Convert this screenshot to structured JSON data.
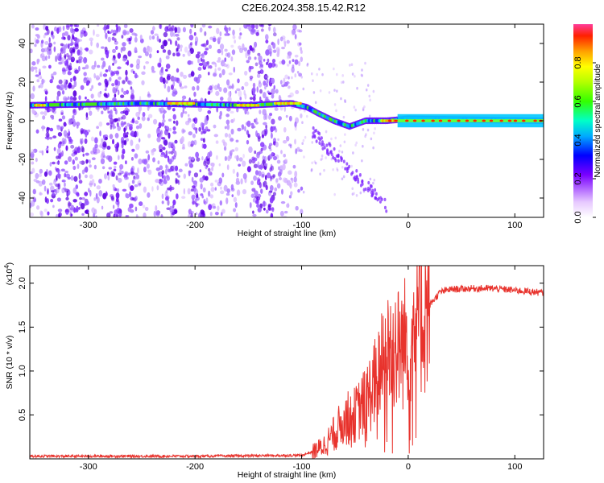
{
  "title": "C2E6.2024.358.15.42.R12",
  "chart_data": [
    {
      "type": "heatmap",
      "xlabel": "Height of straight line (km)",
      "ylabel": "Frequency (Hz)",
      "xlim": [
        -355,
        127
      ],
      "ylim": [
        -50,
        50
      ],
      "xticks": [
        -300,
        -200,
        -100,
        0,
        100
      ],
      "yticks": [
        -40,
        -20,
        0,
        20,
        40
      ],
      "colorbar": {
        "label": "Normalized spectral amplitude",
        "range": [
          0.0,
          1.0
        ],
        "ticks": [
          0.0,
          0.2,
          0.4,
          0.6,
          0.8
        ],
        "tick_labels": [
          "0.0",
          "0.2",
          "0.4",
          "0.6",
          "0.8"
        ]
      },
      "features": {
        "main_band": [
          {
            "x": -355,
            "y": 8
          },
          {
            "x": -250,
            "y": 9
          },
          {
            "x": -150,
            "y": 8
          },
          {
            "x": -110,
            "y": 9
          },
          {
            "x": -95,
            "y": 7
          },
          {
            "x": -85,
            "y": 4
          },
          {
            "x": -70,
            "y": 0
          },
          {
            "x": -55,
            "y": -3
          },
          {
            "x": -40,
            "y": 0
          },
          {
            "x": -20,
            "y": 0
          },
          {
            "x": 0,
            "y": 1
          },
          {
            "x": 127,
            "y": 0
          }
        ],
        "bright_segments": [
          {
            "x0": -350,
            "x1": -340,
            "y": 8
          },
          {
            "x0": -225,
            "x1": -200,
            "y": 9
          },
          {
            "x0": -160,
            "x1": -140,
            "y": 8
          },
          {
            "x0": -125,
            "x1": -100,
            "y": 9
          },
          {
            "x0": -25,
            "x1": 127,
            "y": 0
          }
        ]
      }
    },
    {
      "type": "line",
      "xlabel": "Height of straight line (km)",
      "ylabel": "SNR (10 * v/v)",
      "y_multiplier": "(x10^4)",
      "y_multiplier_base": "(x10",
      "y_multiplier_exp": "4",
      "y_multiplier_close": ")",
      "xlim": [
        -355,
        127
      ],
      "ylim": [
        0,
        2.2
      ],
      "xticks": [
        -300,
        -200,
        -100,
        0,
        100
      ],
      "yticks": [
        0.5,
        1.0,
        1.5,
        2.0
      ],
      "ytick_labels": [
        "0.5",
        "1.0",
        "1.5",
        "2.0"
      ],
      "series": [
        {
          "color": "#e8332d",
          "x": [
            -355,
            -300,
            -200,
            -100,
            -90,
            -80,
            -70,
            -60,
            -50,
            -40,
            -30,
            -25,
            -20,
            -15,
            -10,
            -5,
            0,
            10,
            20,
            30,
            40,
            60,
            80,
            100,
            127
          ],
          "y": [
            0.03,
            0.03,
            0.03,
            0.04,
            0.08,
            0.14,
            0.28,
            0.45,
            0.5,
            0.65,
            0.9,
            1.05,
            1.2,
            1.3,
            1.25,
            1.3,
            1.4,
            1.55,
            1.75,
            1.9,
            1.93,
            1.94,
            1.94,
            1.92,
            1.89
          ]
        }
      ]
    }
  ]
}
